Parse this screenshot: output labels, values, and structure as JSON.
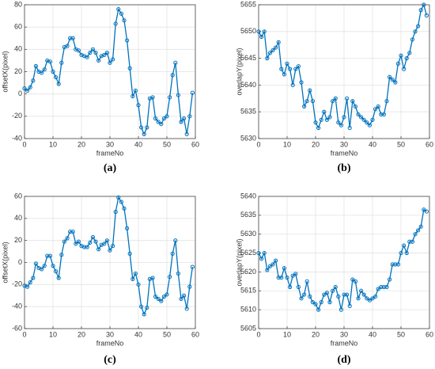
{
  "chart_data": [
    {
      "type": "line",
      "caption": "(a)",
      "xlabel": "frameNo",
      "ylabel": "offsetX(pixel)",
      "color": "#0072bd",
      "grid": true,
      "xlim": [
        0,
        60
      ],
      "xticks": [
        0,
        10,
        20,
        30,
        40,
        50,
        60
      ],
      "ylim": [
        -40,
        80
      ],
      "yticks": [
        -40,
        -20,
        0,
        20,
        40,
        60,
        80
      ],
      "x": [
        0,
        1,
        2,
        3,
        4,
        5,
        6,
        7,
        8,
        9,
        10,
        11,
        12,
        13,
        14,
        15,
        16,
        17,
        18,
        19,
        20,
        21,
        22,
        23,
        24,
        25,
        26,
        27,
        28,
        29,
        30,
        31,
        32,
        33,
        34,
        35,
        36,
        37,
        38,
        39,
        40,
        41,
        42,
        43,
        44,
        45,
        46,
        47,
        48,
        49,
        50,
        51,
        52,
        53,
        54,
        55,
        56,
        57,
        58,
        59
      ],
      "values": [
        5,
        3,
        6,
        12,
        25,
        20,
        19,
        22,
        30,
        29,
        20,
        15,
        9,
        28,
        42,
        43,
        50,
        50,
        40,
        39,
        35,
        34,
        33,
        37,
        40,
        37,
        30,
        34,
        35,
        37,
        28,
        31,
        63,
        76,
        72,
        66,
        48,
        23,
        -2,
        3,
        -10,
        -30,
        -36,
        -30,
        -4,
        -3,
        -22,
        -25,
        -27,
        -22,
        -20,
        -3,
        17,
        28,
        -1,
        -25,
        -22,
        -36,
        -20,
        1
      ]
    },
    {
      "type": "line",
      "caption": "(b)",
      "xlabel": "frameNo",
      "ylabel": "overlapY(pixel)",
      "color": "#0072bd",
      "grid": true,
      "xlim": [
        0,
        60
      ],
      "xticks": [
        0,
        10,
        20,
        30,
        40,
        50,
        60
      ],
      "ylim": [
        5630,
        5655
      ],
      "yticks": [
        5630,
        5635,
        5640,
        5645,
        5650,
        5655
      ],
      "x": [
        0,
        1,
        2,
        3,
        4,
        5,
        6,
        7,
        8,
        9,
        10,
        11,
        12,
        13,
        14,
        15,
        16,
        17,
        18,
        19,
        20,
        21,
        22,
        23,
        24,
        25,
        26,
        27,
        28,
        29,
        30,
        31,
        32,
        33,
        34,
        35,
        36,
        37,
        38,
        39,
        40,
        41,
        42,
        43,
        44,
        45,
        46,
        47,
        48,
        49,
        50,
        51,
        52,
        53,
        54,
        55,
        56,
        57,
        58,
        59
      ],
      "values": [
        5650,
        5649,
        5650,
        5645,
        5646,
        5646.5,
        5647,
        5648,
        5643,
        5642,
        5644,
        5643,
        5640,
        5643,
        5643.5,
        5640.5,
        5636,
        5637,
        5639,
        5637,
        5633,
        5632,
        5633.5,
        5635,
        5633.5,
        5634,
        5637,
        5637.5,
        5633,
        5632.5,
        5634,
        5637.5,
        5632,
        5637,
        5636,
        5634.5,
        5634,
        5633.5,
        5633,
        5632.5,
        5633.5,
        5635.5,
        5636,
        5634.5,
        5634.5,
        5637,
        5641.5,
        5641,
        5640.5,
        5644,
        5645.5,
        5643,
        5645,
        5646,
        5648.5,
        5650,
        5651,
        5654,
        5655,
        5653
      ]
    },
    {
      "type": "line",
      "caption": "(c)",
      "xlabel": "frameNo",
      "ylabel": "offsetX(pixel)",
      "color": "#0072bd",
      "grid": true,
      "xlim": [
        0,
        60
      ],
      "xticks": [
        0,
        10,
        20,
        30,
        40,
        50,
        60
      ],
      "ylim": [
        -60,
        60
      ],
      "yticks": [
        -60,
        -40,
        -20,
        0,
        20,
        40,
        60
      ],
      "x": [
        0,
        1,
        2,
        3,
        4,
        5,
        6,
        7,
        8,
        9,
        10,
        11,
        12,
        13,
        14,
        15,
        16,
        17,
        18,
        19,
        20,
        21,
        22,
        23,
        24,
        25,
        26,
        27,
        28,
        29,
        30,
        31,
        32,
        33,
        34,
        35,
        36,
        37,
        38,
        39,
        40,
        41,
        42,
        43,
        44,
        45,
        46,
        47,
        48,
        49,
        50,
        51,
        52,
        53,
        54,
        55,
        56,
        57,
        58,
        59
      ],
      "values": [
        -21,
        -22,
        -18,
        -14,
        -1,
        -5,
        -6,
        -3,
        6,
        6,
        -3,
        -8,
        -14,
        7,
        19,
        22,
        28,
        28,
        17,
        19,
        15,
        14,
        14,
        18,
        23,
        19,
        12,
        16,
        17,
        20,
        11,
        15,
        46,
        59,
        55,
        49,
        31,
        8,
        -15,
        -10,
        -20,
        -40,
        -47,
        -41,
        -15,
        -14,
        -31,
        -33,
        -35,
        -31,
        -29,
        -13,
        8,
        20,
        -10,
        -33,
        -30,
        -42,
        -22,
        -4
      ]
    },
    {
      "type": "line",
      "caption": "(d)",
      "xlabel": "frameNo",
      "ylabel": "overlapY(pixel)",
      "color": "#0072bd",
      "grid": true,
      "xlim": [
        0,
        60
      ],
      "xticks": [
        0,
        10,
        20,
        30,
        40,
        50,
        60
      ],
      "ylim": [
        5605,
        5640
      ],
      "yticks": [
        5605,
        5610,
        5615,
        5620,
        5625,
        5630,
        5635,
        5640
      ],
      "x": [
        0,
        1,
        2,
        3,
        4,
        5,
        6,
        7,
        8,
        9,
        10,
        11,
        12,
        13,
        14,
        15,
        16,
        17,
        18,
        19,
        20,
        21,
        22,
        23,
        24,
        25,
        26,
        27,
        28,
        29,
        30,
        31,
        32,
        33,
        34,
        35,
        36,
        37,
        38,
        39,
        40,
        41,
        42,
        43,
        44,
        45,
        46,
        47,
        48,
        49,
        50,
        51,
        52,
        53,
        54,
        55,
        56,
        57,
        58,
        59
      ],
      "values": [
        5625,
        5623.5,
        5625,
        5620.5,
        5621.5,
        5622,
        5623,
        5618.5,
        5618.5,
        5621,
        5618.5,
        5616,
        5619,
        5619.5,
        5616,
        5613,
        5614,
        5617.5,
        5613.5,
        5612,
        5611.5,
        5610,
        5612,
        5614,
        5614.5,
        5612,
        5615,
        5616,
        5613.5,
        5610,
        5614,
        5614,
        5611,
        5618,
        5617.5,
        5613,
        5615,
        5614,
        5613,
        5612.5,
        5613,
        5613.5,
        5615.5,
        5616,
        5616,
        5616,
        5618,
        5622,
        5622,
        5622,
        5625,
        5627,
        5625,
        5628,
        5628,
        5630,
        5631,
        5632,
        5636.5,
        5636
      ]
    }
  ]
}
